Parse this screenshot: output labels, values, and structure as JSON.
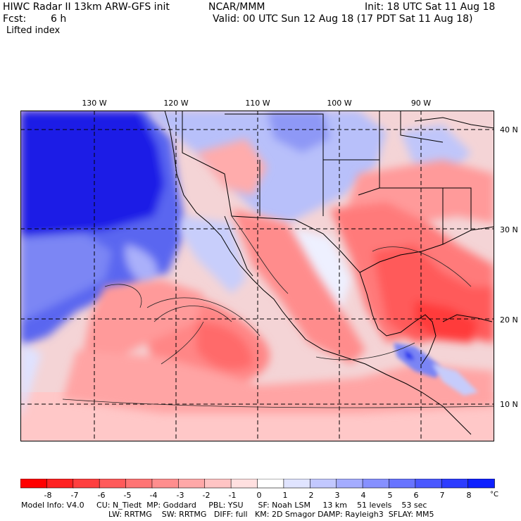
{
  "header": {
    "model_title": "HIWC Radar II 13km ARW-GFS init",
    "agency": "NCAR/MMM",
    "init": "Init: 18 UTC Sat 11 Aug 18",
    "fcst_label": "Fcst:",
    "fcst_value": "6 h",
    "valid": "Valid: 00 UTC Sun 12 Aug 18 (17 PDT Sat 11 Aug 18)",
    "field": "Lifted index"
  },
  "map": {
    "lon_labels": [
      "130 W",
      "120 W",
      "110 W",
      "100 W",
      "90 W"
    ],
    "lat_labels": [
      "40 N",
      "30 N",
      "20 N",
      "10 N"
    ]
  },
  "colorbar": {
    "ticks": [
      "-8",
      "-7",
      "-6",
      "-5",
      "-4",
      "-3",
      "-2",
      "-1",
      "0",
      "1",
      "2",
      "3",
      "4",
      "5",
      "6",
      "7",
      "8"
    ],
    "unit": "°C",
    "colors": [
      "#ff0000",
      "#ff2121",
      "#ff3f3f",
      "#ff5a5a",
      "#ff7474",
      "#ff8e8e",
      "#ffa8a8",
      "#ffc4c4",
      "#ffe0e0",
      "#ffffff",
      "#e0e4ff",
      "#c2c8ff",
      "#a4acff",
      "#8690ff",
      "#6874ff",
      "#4a58ff",
      "#2c3cff",
      "#0e20ff"
    ]
  },
  "model_info": {
    "line1": "Model Info: V4.0     CU: N_Tiedt  MP: Goddard     PBL: YSU      SF: Noah LSM     13 km    51 levels    53 sec",
    "line2": "LW: RRTMG    SW: RRTMG   DIFF: full   KM: 2D Smagor DAMP: Rayleigh3  SFLAY: MM5"
  }
}
